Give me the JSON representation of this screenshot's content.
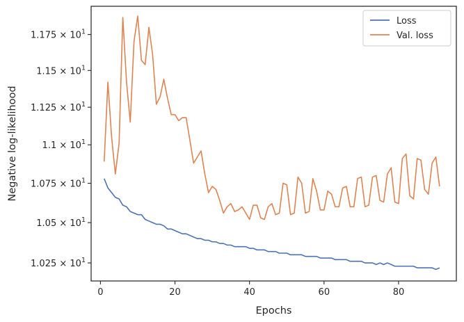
{
  "chart_data": {
    "type": "line",
    "xlabel": "Epochs",
    "ylabel": "Negative log-likelihood",
    "y_scale": "log",
    "xlim": [
      -2.5,
      95.5
    ],
    "ylim": [
      10.14,
      11.95
    ],
    "x_ticks": [
      0,
      20,
      40,
      60,
      80
    ],
    "x_tick_labels": [
      "0",
      "20",
      "40",
      "60",
      "80"
    ],
    "y_ticks": [
      10.25,
      10.5,
      10.75,
      11.0,
      11.25,
      11.5,
      11.75
    ],
    "y_tick_labels": [
      {
        "mantissa": "1.025",
        "base": "10",
        "exp": "1"
      },
      {
        "mantissa": "1.05",
        "base": "10",
        "exp": "1"
      },
      {
        "mantissa": "1.075",
        "base": "10",
        "exp": "1"
      },
      {
        "mantissa": "1.1",
        "base": "10",
        "exp": "1"
      },
      {
        "mantissa": "1.125",
        "base": "10",
        "exp": "1"
      },
      {
        "mantissa": "1.15",
        "base": "10",
        "exp": "1"
      },
      {
        "mantissa": "1.175",
        "base": "10",
        "exp": "1"
      }
    ],
    "grid": false,
    "legend_position": "top-right",
    "x": [
      1,
      2,
      3,
      4,
      5,
      6,
      7,
      8,
      9,
      10,
      11,
      12,
      13,
      14,
      15,
      16,
      17,
      18,
      19,
      20,
      21,
      22,
      23,
      24,
      25,
      26,
      27,
      28,
      29,
      30,
      31,
      32,
      33,
      34,
      35,
      36,
      37,
      38,
      39,
      40,
      41,
      42,
      43,
      44,
      45,
      46,
      47,
      48,
      49,
      50,
      51,
      52,
      53,
      54,
      55,
      56,
      57,
      58,
      59,
      60,
      61,
      62,
      63,
      64,
      65,
      66,
      67,
      68,
      69,
      70,
      71,
      72,
      73,
      74,
      75,
      76,
      77,
      78,
      79,
      80,
      81,
      82,
      83,
      84,
      85,
      86,
      87,
      88,
      89,
      90,
      91
    ],
    "series": [
      {
        "name": "Loss",
        "color": "#4c72b0",
        "values": [
          10.78,
          10.72,
          10.69,
          10.66,
          10.65,
          10.61,
          10.6,
          10.57,
          10.56,
          10.55,
          10.55,
          10.52,
          10.51,
          10.5,
          10.49,
          10.49,
          10.48,
          10.46,
          10.46,
          10.45,
          10.44,
          10.43,
          10.43,
          10.42,
          10.41,
          10.4,
          10.4,
          10.39,
          10.39,
          10.38,
          10.38,
          10.37,
          10.37,
          10.36,
          10.36,
          10.35,
          10.35,
          10.35,
          10.35,
          10.34,
          10.34,
          10.33,
          10.33,
          10.33,
          10.32,
          10.32,
          10.32,
          10.31,
          10.31,
          10.31,
          10.3,
          10.3,
          10.3,
          10.3,
          10.29,
          10.29,
          10.29,
          10.29,
          10.28,
          10.28,
          10.28,
          10.28,
          10.27,
          10.27,
          10.27,
          10.27,
          10.26,
          10.26,
          10.26,
          10.26,
          10.25,
          10.25,
          10.25,
          10.24,
          10.25,
          10.24,
          10.25,
          10.24,
          10.23,
          10.23,
          10.23,
          10.23,
          10.23,
          10.23,
          10.22,
          10.22,
          10.22,
          10.22,
          10.22,
          10.21,
          10.22
        ]
      },
      {
        "name": "Val. loss",
        "color": "#dd8452",
        "values": [
          10.89,
          11.42,
          11.05,
          10.81,
          11.01,
          11.87,
          11.42,
          11.15,
          11.7,
          11.88,
          11.57,
          11.54,
          11.8,
          11.61,
          11.27,
          11.32,
          11.44,
          11.31,
          11.2,
          11.2,
          11.16,
          11.18,
          11.18,
          11.03,
          10.88,
          10.92,
          10.96,
          10.81,
          10.69,
          10.73,
          10.71,
          10.64,
          10.56,
          10.6,
          10.62,
          10.57,
          10.58,
          10.6,
          10.56,
          10.52,
          10.61,
          10.61,
          10.53,
          10.52,
          10.6,
          10.62,
          10.55,
          10.56,
          10.75,
          10.74,
          10.55,
          10.56,
          10.79,
          10.75,
          10.56,
          10.57,
          10.78,
          10.7,
          10.58,
          10.58,
          10.7,
          10.68,
          10.6,
          10.6,
          10.72,
          10.73,
          10.6,
          10.6,
          10.78,
          10.79,
          10.6,
          10.61,
          10.79,
          10.8,
          10.64,
          10.63,
          10.81,
          10.85,
          10.63,
          10.62,
          10.91,
          10.94,
          10.67,
          10.65,
          10.91,
          10.9,
          10.71,
          10.68,
          10.88,
          10.92,
          10.73
        ]
      }
    ]
  }
}
